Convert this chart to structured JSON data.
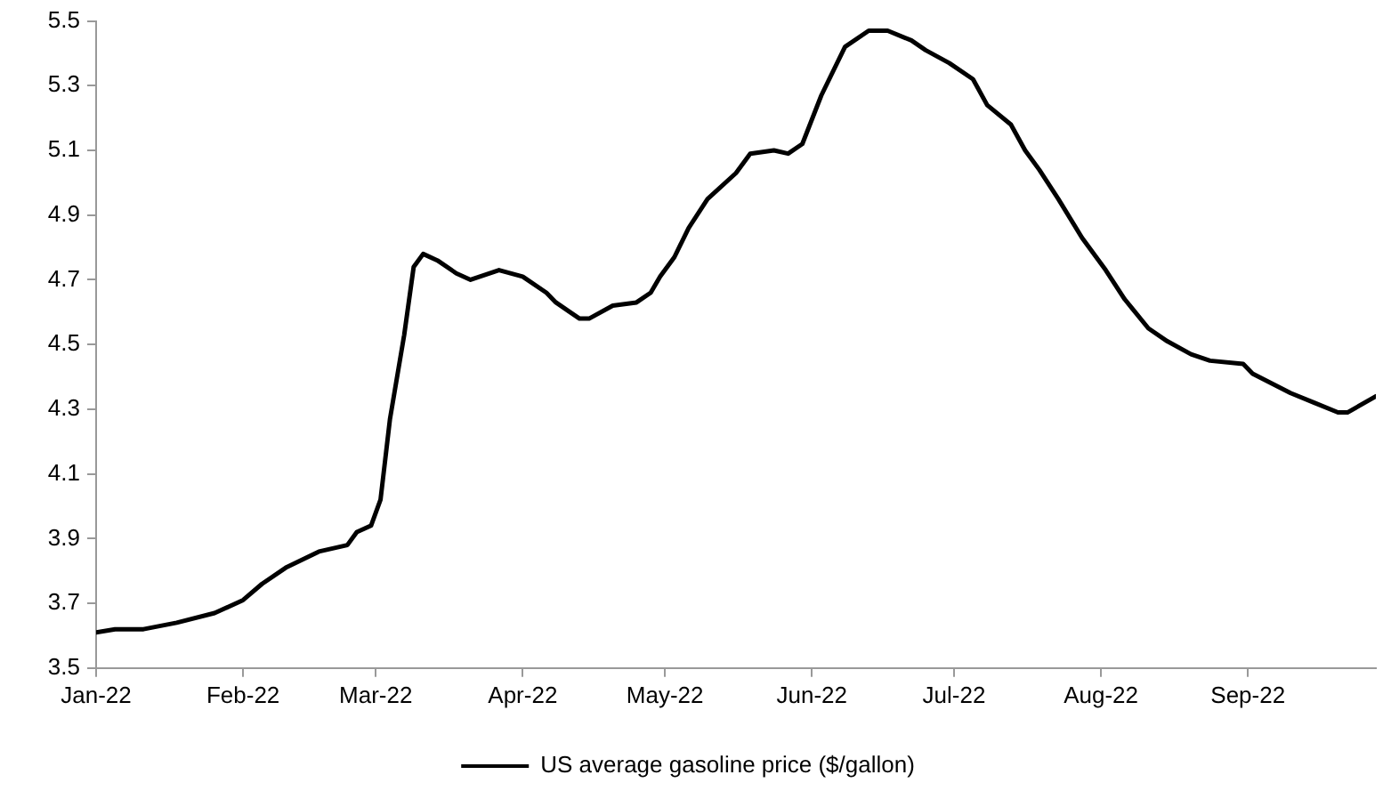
{
  "chart_data": {
    "type": "line",
    "x": [
      "2022-01-01",
      "2022-01-05",
      "2022-01-11",
      "2022-01-18",
      "2022-01-26",
      "2022-02-01",
      "2022-02-05",
      "2022-02-10",
      "2022-02-17",
      "2022-02-23",
      "2022-02-25",
      "2022-02-28",
      "2022-03-02",
      "2022-03-04",
      "2022-03-07",
      "2022-03-09",
      "2022-03-11",
      "2022-03-14",
      "2022-03-18",
      "2022-03-21",
      "2022-03-27",
      "2022-04-01",
      "2022-04-06",
      "2022-04-08",
      "2022-04-11",
      "2022-04-13",
      "2022-04-15",
      "2022-04-20",
      "2022-04-25",
      "2022-04-28",
      "2022-04-30",
      "2022-05-03",
      "2022-05-06",
      "2022-05-10",
      "2022-05-16",
      "2022-05-19",
      "2022-05-24",
      "2022-05-27",
      "2022-05-30",
      "2022-06-03",
      "2022-06-08",
      "2022-06-13",
      "2022-06-17",
      "2022-06-22",
      "2022-06-25",
      "2022-06-30",
      "2022-07-05",
      "2022-07-08",
      "2022-07-13",
      "2022-07-16",
      "2022-07-19",
      "2022-07-23",
      "2022-07-28",
      "2022-08-02",
      "2022-08-06",
      "2022-08-11",
      "2022-08-15",
      "2022-08-20",
      "2022-08-24",
      "2022-08-31",
      "2022-09-02",
      "2022-09-10",
      "2022-09-15",
      "2022-09-20",
      "2022-09-22",
      "2022-09-28"
    ],
    "series": [
      {
        "name": "US average gasoline price ($/gallon)",
        "color": "#000000",
        "values": [
          3.61,
          3.62,
          3.62,
          3.64,
          3.67,
          3.71,
          3.76,
          3.81,
          3.86,
          3.88,
          3.92,
          3.94,
          4.02,
          4.27,
          4.53,
          4.74,
          4.78,
          4.76,
          4.72,
          4.7,
          4.73,
          4.71,
          4.66,
          4.63,
          4.6,
          4.58,
          4.58,
          4.62,
          4.63,
          4.66,
          4.71,
          4.77,
          4.86,
          4.95,
          5.03,
          5.09,
          5.1,
          5.09,
          5.12,
          5.27,
          5.42,
          5.47,
          5.47,
          5.44,
          5.41,
          5.37,
          5.32,
          5.24,
          5.18,
          5.1,
          5.04,
          4.95,
          4.83,
          4.73,
          4.64,
          4.55,
          4.51,
          4.47,
          4.45,
          4.44,
          4.41,
          4.35,
          4.32,
          4.29,
          4.29,
          4.34
        ]
      }
    ],
    "xlim": [
      "2022-01-01",
      "2022-09-28"
    ],
    "xticks": [
      {
        "value": "2022-01-01",
        "label": "Jan-22"
      },
      {
        "value": "2022-02-01",
        "label": "Feb-22"
      },
      {
        "value": "2022-03-01",
        "label": "Mar-22"
      },
      {
        "value": "2022-04-01",
        "label": "Apr-22"
      },
      {
        "value": "2022-05-01",
        "label": "May-22"
      },
      {
        "value": "2022-06-01",
        "label": "Jun-22"
      },
      {
        "value": "2022-07-01",
        "label": "Jul-22"
      },
      {
        "value": "2022-08-01",
        "label": "Aug-22"
      },
      {
        "value": "2022-09-01",
        "label": "Sep-22"
      }
    ],
    "ylim": [
      3.5,
      5.5
    ],
    "yticks": [
      {
        "value": 3.5,
        "label": "3.5"
      },
      {
        "value": 3.7,
        "label": "3.7"
      },
      {
        "value": 3.9,
        "label": "3.9"
      },
      {
        "value": 4.1,
        "label": "4.1"
      },
      {
        "value": 4.3,
        "label": "4.3"
      },
      {
        "value": 4.5,
        "label": "4.5"
      },
      {
        "value": 4.7,
        "label": "4.7"
      },
      {
        "value": 4.9,
        "label": "4.9"
      },
      {
        "value": 5.1,
        "label": "5.1"
      },
      {
        "value": 5.3,
        "label": "5.3"
      },
      {
        "value": 5.5,
        "label": "5.5"
      }
    ],
    "grid": false,
    "legend": "bottom",
    "marker": "none",
    "line_style": "solid"
  }
}
